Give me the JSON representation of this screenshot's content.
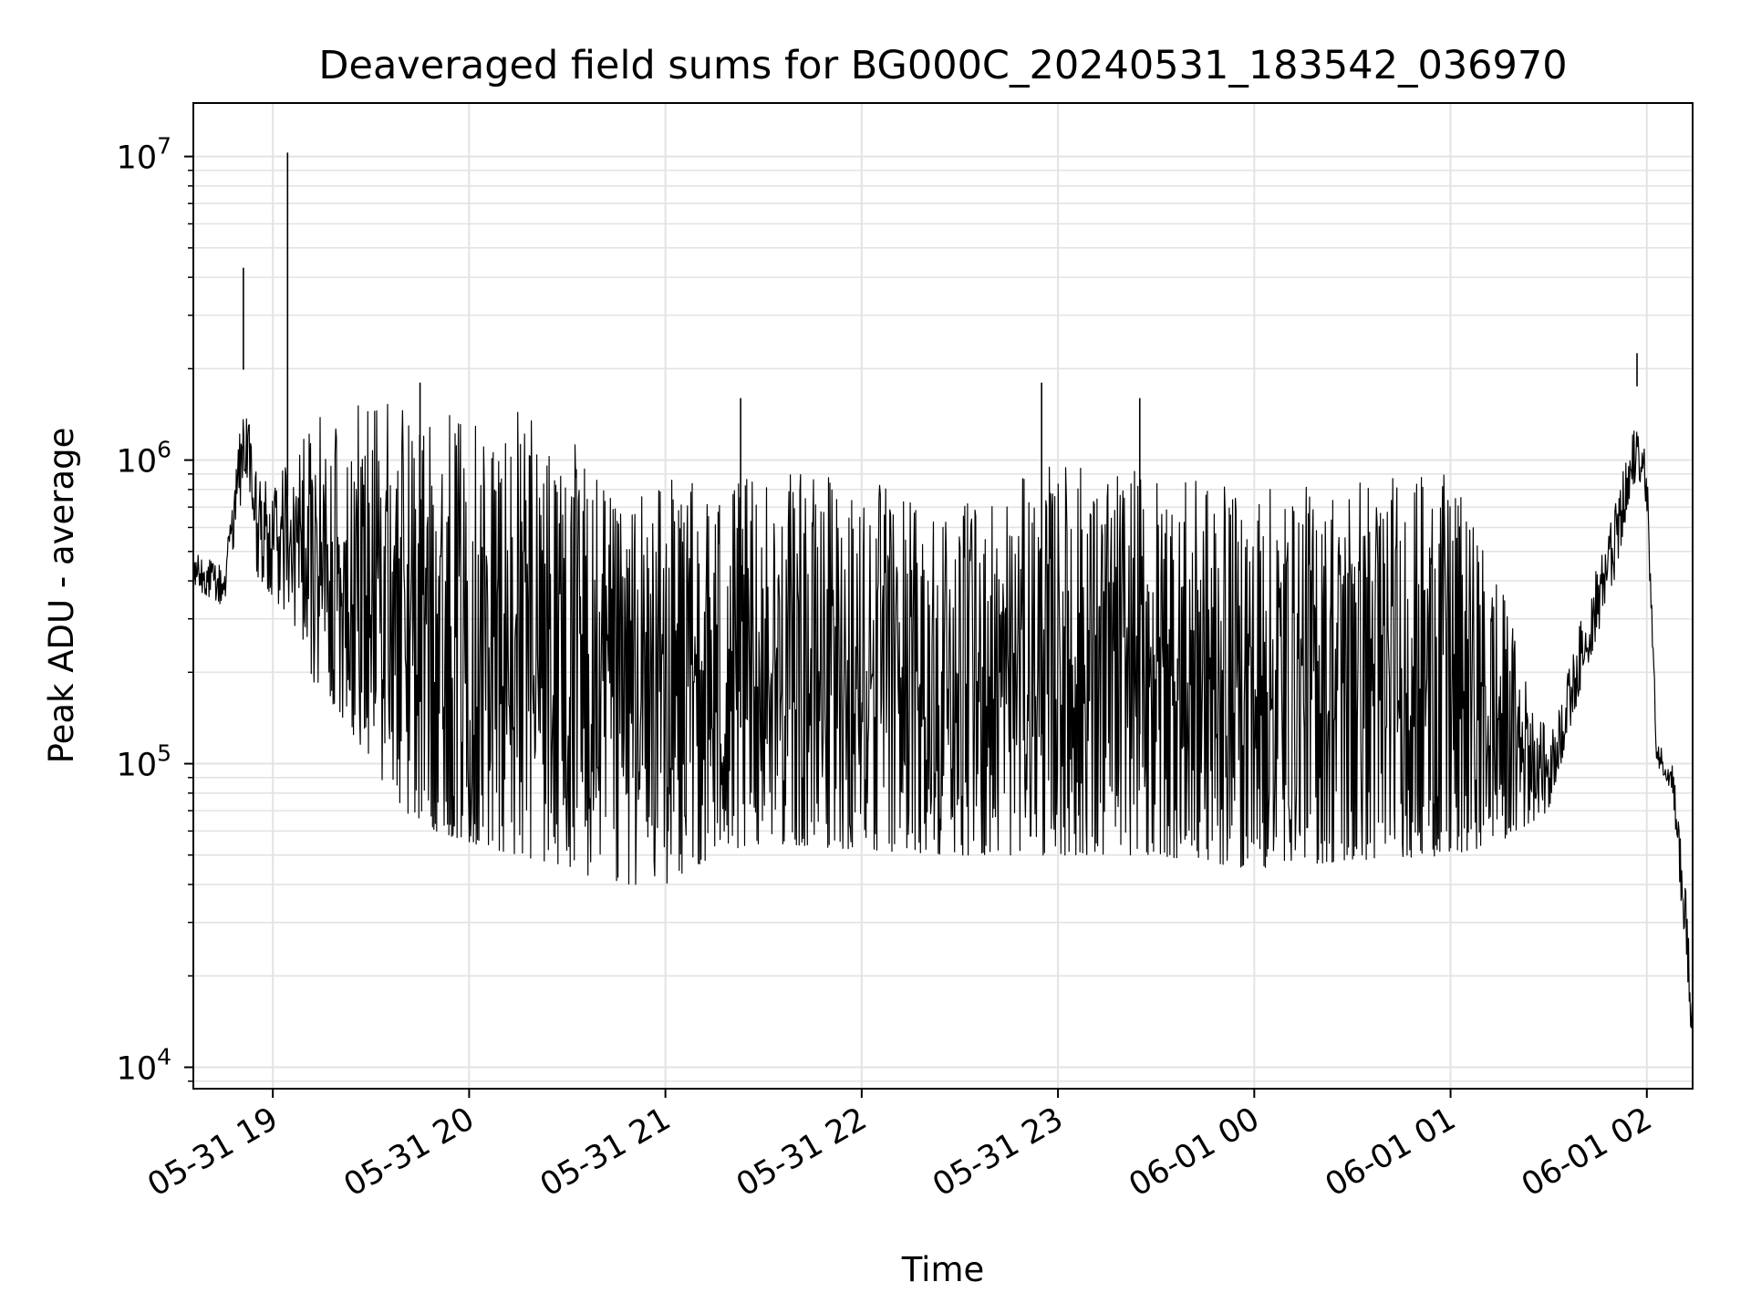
{
  "chart_data": {
    "type": "line",
    "title": "Deaveraged field sums for BG000C_20240531_183542_036970",
    "xlabel": "Time",
    "ylabel": "Peak ADU - average",
    "x_type": "datetime",
    "y_scale": "log",
    "xlim": [
      "2024-05-31 18:35:42",
      "2024-06-01 02:14:00"
    ],
    "ylim": [
      8500,
      15000000
    ],
    "grid": true,
    "legend": "none",
    "line_color": "#000000",
    "grid_color": "#e3e3e3",
    "x_ticks": [
      {
        "t": "2024-05-31 19:00",
        "label": "05-31 19"
      },
      {
        "t": "2024-05-31 20:00",
        "label": "05-31 20"
      },
      {
        "t": "2024-05-31 21:00",
        "label": "05-31 21"
      },
      {
        "t": "2024-05-31 22:00",
        "label": "05-31 22"
      },
      {
        "t": "2024-05-31 23:00",
        "label": "05-31 23"
      },
      {
        "t": "2024-06-01 00:00",
        "label": "06-01 00"
      },
      {
        "t": "2024-06-01 01:00",
        "label": "06-01 01"
      },
      {
        "t": "2024-06-01 02:00",
        "label": "06-01 02"
      }
    ],
    "y_ticks": [
      {
        "value": 10000,
        "base": "10",
        "exp": "4"
      },
      {
        "value": 100000,
        "base": "10",
        "exp": "5"
      },
      {
        "value": 1000000,
        "base": "10",
        "exp": "6"
      },
      {
        "value": 10000000,
        "base": "10",
        "exp": "7"
      }
    ],
    "series": [
      {
        "note_keys": [
          "t",
          "lower_envelope",
          "upper_envelope"
        ],
        "envelope": [
          [
            "2024-05-31 18:35:42",
            380000,
            500000
          ],
          [
            "2024-05-31 18:45:00",
            330000,
            450000
          ],
          [
            "2024-05-31 18:50:00",
            700000,
            1300000
          ],
          [
            "2024-05-31 18:52:00",
            900000,
            1500000
          ],
          [
            "2024-05-31 18:55:00",
            400000,
            900000
          ],
          [
            "2024-05-31 19:00:00",
            350000,
            900000
          ],
          [
            "2024-05-31 19:05:00",
            300000,
            1000000
          ],
          [
            "2024-05-31 19:10:00",
            200000,
            1300000
          ],
          [
            "2024-05-31 19:20:00",
            150000,
            1500000
          ],
          [
            "2024-05-31 19:30:00",
            100000,
            1700000
          ],
          [
            "2024-05-31 19:40:00",
            70000,
            1600000
          ],
          [
            "2024-05-31 19:50:00",
            60000,
            1500000
          ],
          [
            "2024-05-31 20:00:00",
            55000,
            1400000
          ],
          [
            "2024-05-31 20:15:00",
            50000,
            1450000
          ],
          [
            "2024-05-31 20:30:00",
            45000,
            1300000
          ],
          [
            "2024-05-31 20:45:00",
            40000,
            700000
          ],
          [
            "2024-05-31 21:00:00",
            40000,
            900000
          ],
          [
            "2024-05-31 21:15:00",
            50000,
            800000
          ],
          [
            "2024-05-31 21:30:00",
            55000,
            900000
          ],
          [
            "2024-05-31 22:00:00",
            52000,
            900000
          ],
          [
            "2024-05-31 22:30:00",
            50000,
            700000
          ],
          [
            "2024-05-31 23:00:00",
            50000,
            1000000
          ],
          [
            "2024-05-31 23:30:00",
            50000,
            900000
          ],
          [
            "2024-06-01 00:00:00",
            45000,
            800000
          ],
          [
            "2024-06-01 00:30:00",
            48000,
            900000
          ],
          [
            "2024-06-01 01:00:00",
            50000,
            900000
          ],
          [
            "2024-06-01 01:15:00",
            55000,
            400000
          ],
          [
            "2024-06-01 01:30:00",
            70000,
            120000
          ],
          [
            "2024-06-01 01:40:00",
            180000,
            300000
          ],
          [
            "2024-06-01 01:50:00",
            400000,
            700000
          ],
          [
            "2024-06-01 01:57:00",
            900000,
            1400000
          ],
          [
            "2024-06-01 02:00:00",
            700000,
            1000000
          ],
          [
            "2024-06-01 02:03:00",
            100000,
            120000
          ],
          [
            "2024-06-01 02:08:00",
            80000,
            100000
          ],
          [
            "2024-06-01 02:12:00",
            20000,
            40000
          ],
          [
            "2024-06-01 02:14:00",
            10000,
            15000
          ]
        ],
        "spikes": [
          [
            "2024-05-31 18:51:00",
            4300000
          ],
          [
            "2024-05-31 19:04:30",
            10300000
          ],
          [
            "2024-05-31 19:45:00",
            1800000
          ],
          [
            "2024-05-31 21:23:00",
            1600000
          ],
          [
            "2024-05-31 22:55:00",
            1800000
          ],
          [
            "2024-05-31 23:25:00",
            1600000
          ],
          [
            "2024-06-01 01:57:00",
            1750000
          ]
        ]
      }
    ]
  }
}
